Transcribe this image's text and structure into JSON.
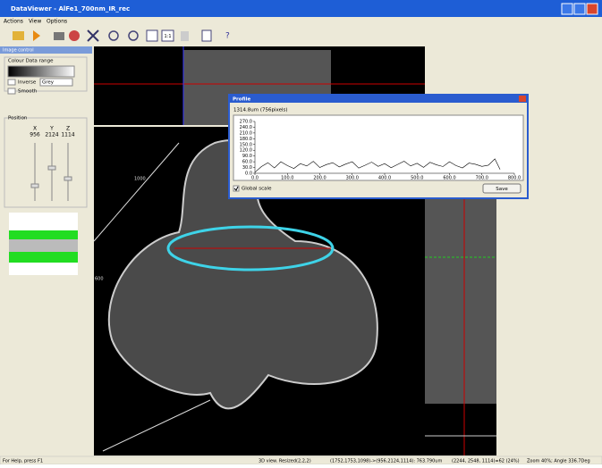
{
  "window": {
    "title": "DataViewer - AlFe1_700nm_IR_rec",
    "menu": [
      "Actions",
      "View",
      "Options"
    ],
    "zoom_button": "1:1"
  },
  "image_control": {
    "title": "Image control",
    "colour_range": "Colour Data range",
    "inverse": "Inverse",
    "palette": "Grey",
    "smooth": "Smooth",
    "position": "Position",
    "axes": [
      "X",
      "Y",
      "Z"
    ],
    "coords": [
      "956",
      "2124",
      "1114"
    ]
  },
  "views": {
    "scale_labels": [
      "1000",
      "600"
    ]
  },
  "profile": {
    "title": "Profile",
    "length": "1314.8um (756pixels)",
    "global_scale": "Global scale",
    "save": "Save"
  },
  "chart_data": {
    "type": "line",
    "color": "#000000",
    "x": [
      0,
      20,
      40,
      60,
      80,
      100,
      120,
      140,
      160,
      180,
      200,
      220,
      240,
      260,
      280,
      300,
      320,
      340,
      360,
      380,
      400,
      420,
      440,
      460,
      480,
      500,
      520,
      540,
      560,
      580,
      600,
      620,
      640,
      660,
      680,
      700,
      720,
      740,
      756
    ],
    "values": [
      5,
      35,
      55,
      28,
      60,
      40,
      25,
      50,
      38,
      62,
      30,
      45,
      55,
      33,
      48,
      60,
      27,
      42,
      58,
      36,
      50,
      29,
      46,
      63,
      38,
      52,
      31,
      57,
      44,
      35,
      60,
      40,
      28,
      53,
      47,
      36,
      42,
      75,
      20
    ],
    "xlim": [
      0,
      800
    ],
    "ylim": [
      0,
      270
    ],
    "xticks": [
      {
        "value": 0,
        "label": "0.0"
      },
      {
        "value": 100,
        "label": "100.0"
      },
      {
        "value": 200,
        "label": "200.0"
      },
      {
        "value": 300,
        "label": "300.0"
      },
      {
        "value": 400,
        "label": "400.0"
      },
      {
        "value": 500,
        "label": "500.0"
      },
      {
        "value": 600,
        "label": "600.0"
      },
      {
        "value": 700,
        "label": "700.0"
      },
      {
        "value": 800,
        "label": "800.0"
      }
    ],
    "yticks": [
      {
        "value": 0,
        "label": "0.0"
      },
      {
        "value": 30,
        "label": "30.0"
      },
      {
        "value": 60,
        "label": "60.0"
      },
      {
        "value": 90,
        "label": "90.0"
      },
      {
        "value": 120,
        "label": "120.0"
      },
      {
        "value": 150,
        "label": "150.0"
      },
      {
        "value": 180,
        "label": "180.0"
      },
      {
        "value": 210,
        "label": "210.0"
      },
      {
        "value": 240,
        "label": "240.0"
      },
      {
        "value": 270,
        "label": "270.0"
      }
    ]
  },
  "status": {
    "help": "For Help, press F1",
    "view": "3D view. Resized(2,2,2)",
    "line": "(1752,1753,1098)->(956,2124,1114): 763.790um",
    "pixel": "(2244, 2548, 1114)=62 (24%)",
    "zoom": "Zoom 40%; Angle 336.7Deg"
  }
}
